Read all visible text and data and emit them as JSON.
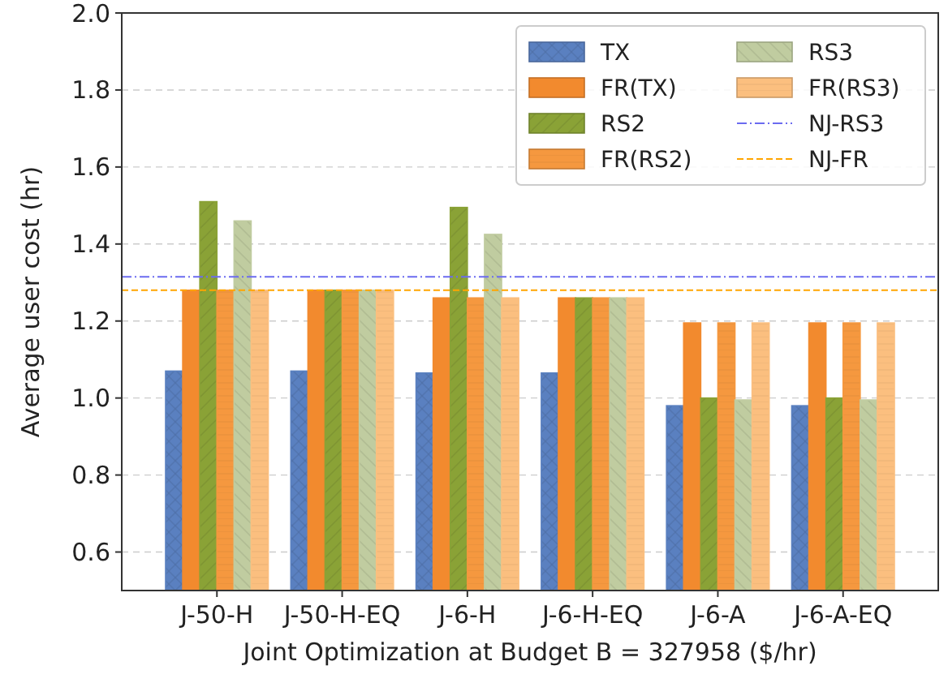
{
  "chart_data": {
    "type": "bar",
    "xlabel": "Joint Optimization at Budget B = 327958 ($/hr)",
    "ylabel": "Average user cost (hr)",
    "categories": [
      "J-50-H",
      "J-50-H-EQ",
      "J-6-H",
      "J-6-H-EQ",
      "J-6-A",
      "J-6-A-EQ"
    ],
    "series": [
      {
        "name": "TX",
        "color": "#5a80c0",
        "values": [
          1.07,
          1.07,
          1.065,
          1.065,
          0.98,
          0.98
        ]
      },
      {
        "name": "FR(TX)",
        "color": "#f28a2e",
        "values": [
          1.28,
          1.28,
          1.26,
          1.26,
          1.195,
          1.195
        ]
      },
      {
        "name": "RS2",
        "color": "#8aa236",
        "values": [
          1.51,
          1.28,
          1.495,
          1.26,
          1.0,
          1.0
        ]
      },
      {
        "name": "FR(RS2)",
        "color": "#f5983f",
        "values": [
          1.28,
          1.28,
          1.26,
          1.26,
          1.195,
          1.195
        ]
      },
      {
        "name": "RS3",
        "color": "#c0cca0",
        "values": [
          1.46,
          1.28,
          1.425,
          1.26,
          0.995,
          0.995
        ]
      },
      {
        "name": "FR(RS3)",
        "color": "#fbbf7f",
        "values": [
          1.28,
          1.28,
          1.26,
          1.26,
          1.195,
          1.195
        ]
      }
    ],
    "ref_lines": [
      {
        "axis": "y",
        "value": 1.315,
        "label": "NJ-RS3",
        "color": "#6b6bf0",
        "line_style": "dashdot"
      },
      {
        "axis": "y",
        "value": 1.28,
        "label": "NJ-FR",
        "color": "#ffa500",
        "line_style": "dashed"
      }
    ],
    "ylim": [
      0.5,
      2.0
    ],
    "yticks": [
      {
        "value": 0.6,
        "label": "0.6"
      },
      {
        "value": 0.8,
        "label": "0.8"
      },
      {
        "value": 1.0,
        "label": "1.0"
      },
      {
        "value": 1.2,
        "label": "1.2"
      },
      {
        "value": 1.4,
        "label": "1.4"
      },
      {
        "value": 1.6,
        "label": "1.6"
      },
      {
        "value": 1.8,
        "label": "1.8"
      },
      {
        "value": 2.0,
        "label": "2.0"
      }
    ],
    "grid": "y",
    "legend": "top right"
  }
}
